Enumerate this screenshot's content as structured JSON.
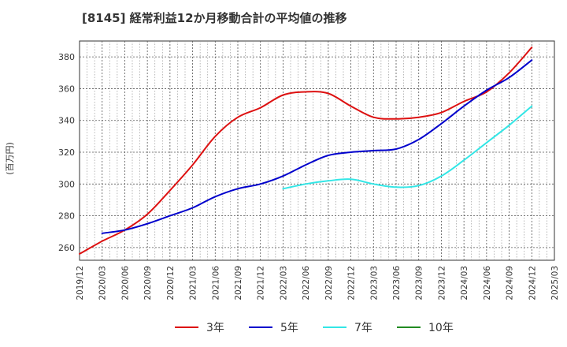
{
  "chart_data": {
    "type": "line",
    "title": "[8145]  経常利益12か月移動合計の平均値の推移",
    "ylabel": "(百万円)",
    "xlabel": "",
    "ylim": [
      252,
      390
    ],
    "yticks": [
      260,
      280,
      300,
      320,
      340,
      360,
      380
    ],
    "x_tick_labels": [
      "2019/12",
      "2020/03",
      "2020/06",
      "2020/09",
      "2020/12",
      "2021/03",
      "2021/06",
      "2021/09",
      "2021/12",
      "2022/03",
      "2022/06",
      "2022/09",
      "2022/12",
      "2023/03",
      "2023/06",
      "2023/09",
      "2023/12",
      "2024/03",
      "2024/06",
      "2024/09",
      "2024/12",
      "2025/03"
    ],
    "grid": true,
    "legend_position": "bottom",
    "series": [
      {
        "name": "3年",
        "color": "#dd1111",
        "values": [
          256,
          264,
          271,
          281,
          296,
          312,
          330,
          342,
          348,
          356,
          358,
          357,
          349,
          342,
          341,
          342,
          345,
          352,
          358,
          370,
          386,
          null
        ]
      },
      {
        "name": "5年",
        "color": "#0000cc",
        "values": [
          null,
          269,
          271,
          275,
          280,
          285,
          292,
          297,
          300,
          305,
          312,
          318,
          320,
          321,
          322,
          328,
          338,
          349,
          359,
          367,
          378,
          null
        ]
      },
      {
        "name": "7年",
        "color": "#33e6e6",
        "values": [
          null,
          null,
          null,
          null,
          null,
          null,
          null,
          null,
          null,
          297,
          300,
          302,
          303,
          300,
          298,
          299,
          305,
          315,
          326,
          337,
          349,
          null
        ]
      },
      {
        "name": "10年",
        "color": "#228b22",
        "values": [
          null,
          null,
          null,
          null,
          null,
          null,
          null,
          null,
          null,
          null,
          null,
          null,
          null,
          null,
          null,
          null,
          null,
          null,
          null,
          null,
          null,
          null
        ]
      }
    ]
  }
}
